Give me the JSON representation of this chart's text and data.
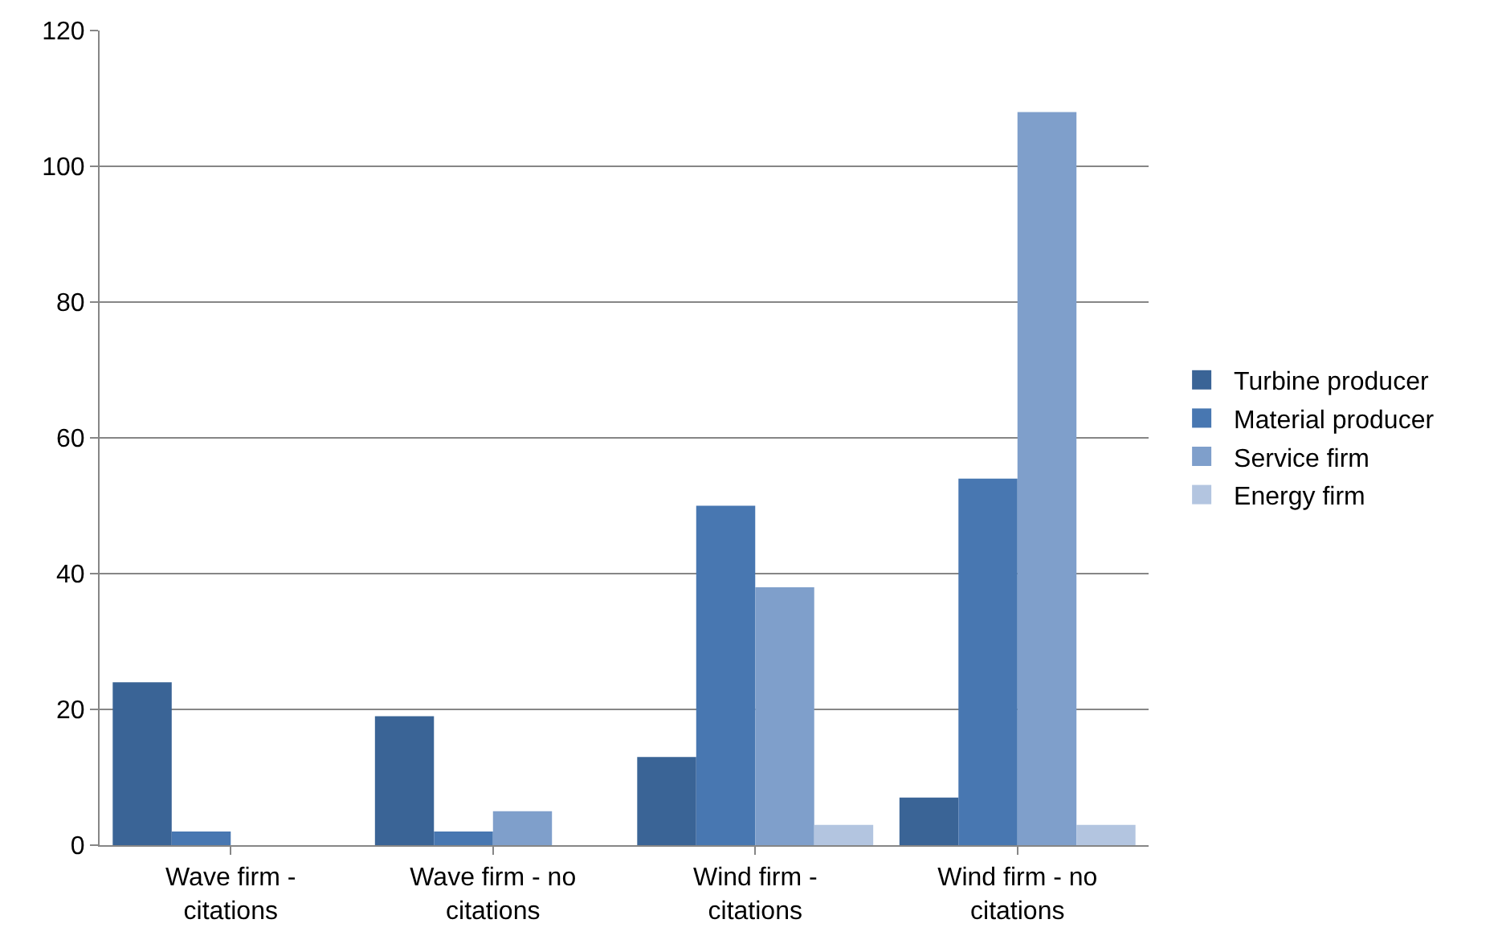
{
  "chart_data": {
    "type": "bar",
    "categories": [
      "Wave firm - citations",
      "Wave firm - no citations",
      "Wind firm - citations",
      "Wind firm - no citations"
    ],
    "series": [
      {
        "name": "Turbine producer",
        "color": "#3a6496",
        "values": [
          24,
          19,
          13,
          7
        ]
      },
      {
        "name": "Material producer",
        "color": "#4877b1",
        "values": [
          2,
          2,
          50,
          54
        ]
      },
      {
        "name": "Service firm",
        "color": "#7f9fcb",
        "values": [
          0,
          5,
          38,
          108
        ]
      },
      {
        "name": "Energy firm",
        "color": "#b3c5e0",
        "values": [
          0,
          0,
          3,
          3
        ]
      }
    ],
    "ylim": [
      0,
      120
    ],
    "yticks": [
      0,
      20,
      40,
      60,
      80,
      100,
      120
    ],
    "grid": "y",
    "legend": "right"
  }
}
